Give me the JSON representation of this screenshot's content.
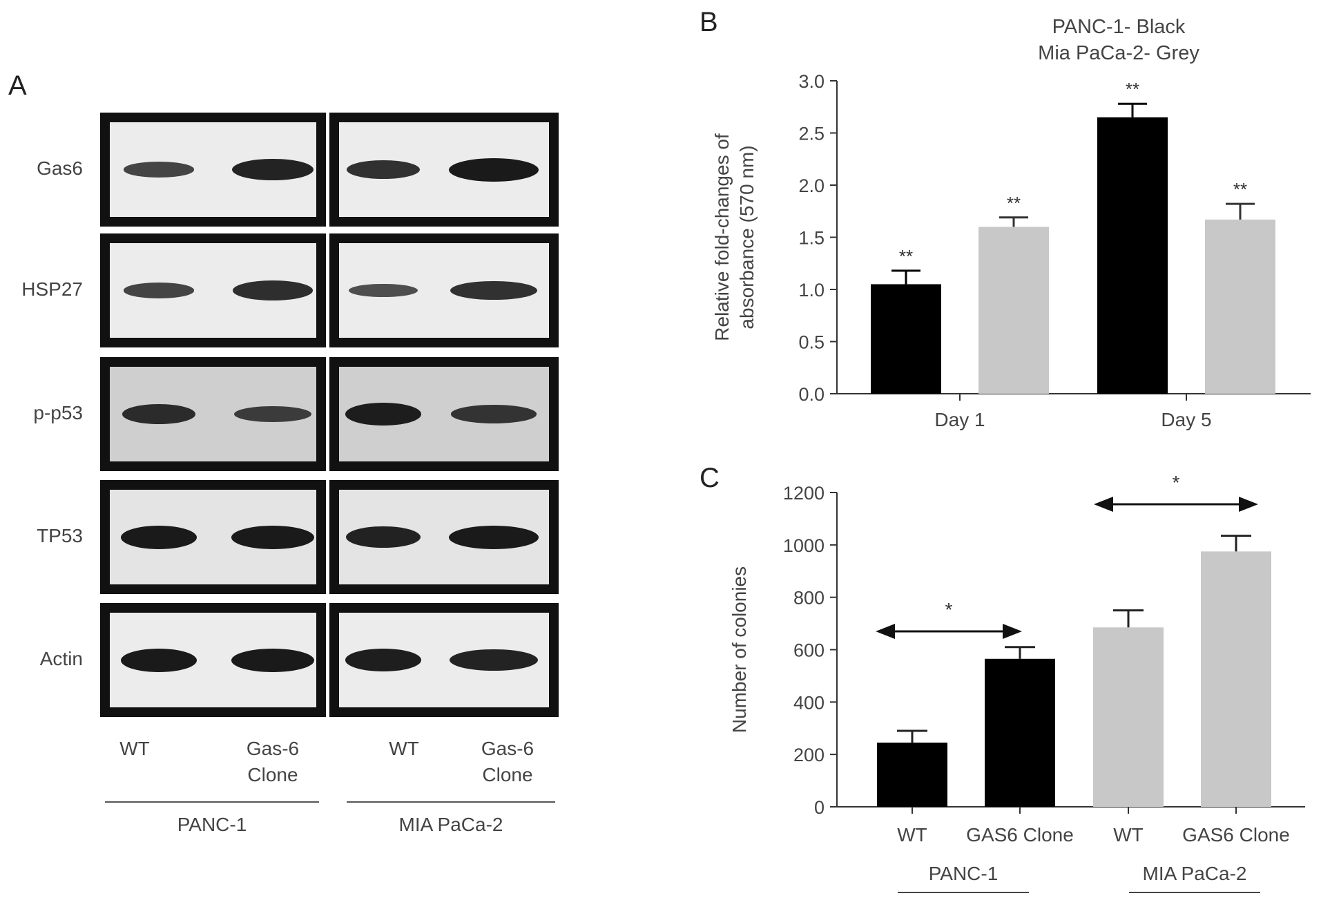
{
  "panel_a": {
    "letter": "A",
    "rows": [
      "Gas6",
      "HSP27",
      "p-p53",
      "TP53",
      "Actin"
    ],
    "lanes": [
      "WT",
      "Gas-6\nClone",
      "WT",
      "Gas-6\nClone"
    ],
    "groups": [
      "PANC-1",
      "MIA PaCa-2"
    ],
    "band_intensity": [
      [
        0.55,
        0.9,
        0.75,
        1.0
      ],
      [
        0.55,
        0.8,
        0.45,
        0.75
      ],
      [
        0.8,
        0.6,
        0.95,
        0.7
      ],
      [
        1.0,
        1.0,
        0.9,
        1.0
      ],
      [
        1.0,
        1.0,
        0.95,
        0.9
      ]
    ]
  },
  "chart_data": [
    {
      "type": "bar",
      "panel": "B",
      "title": "PANC-1- Black\nMia PaCa-2- Grey",
      "ylabel": "Relative fold-changes of\nabsorbance (570 nm)",
      "xlabel": "",
      "categories": [
        "Day 1",
        "Day 5"
      ],
      "ylim": [
        0,
        3.0
      ],
      "yticks": [
        "0.0",
        "0.5",
        "1.0",
        "1.5",
        "2.0",
        "2.5",
        "3.0"
      ],
      "series": [
        {
          "name": "PANC-1",
          "color": "#000000",
          "values": [
            1.05,
            2.65
          ],
          "errors": [
            0.13,
            0.13
          ],
          "annotations": [
            "**",
            "**"
          ]
        },
        {
          "name": "Mia PaCa-2",
          "color": "#c8c8c8",
          "values": [
            1.6,
            1.67
          ],
          "errors": [
            0.09,
            0.15
          ],
          "annotations": [
            "**",
            "**"
          ]
        }
      ]
    },
    {
      "type": "bar",
      "panel": "C",
      "title": "",
      "ylabel": "Number of colonies",
      "xlabel": "",
      "categories": [
        "WT",
        "GAS6 Clone",
        "WT",
        "GAS6 Clone"
      ],
      "groups": [
        "PANC-1",
        "MIA PaCa-2"
      ],
      "ylim": [
        0,
        1200
      ],
      "yticks": [
        "0",
        "200",
        "400",
        "600",
        "800",
        "1000",
        "1200"
      ],
      "values": [
        245,
        565,
        685,
        975
      ],
      "errors": [
        45,
        45,
        65,
        60
      ],
      "colors": [
        "#000000",
        "#000000",
        "#c8c8c8",
        "#c8c8c8"
      ],
      "comparisons": [
        {
          "from": 0,
          "to": 1,
          "label": "*"
        },
        {
          "from": 2,
          "to": 3,
          "label": "*"
        }
      ]
    }
  ]
}
